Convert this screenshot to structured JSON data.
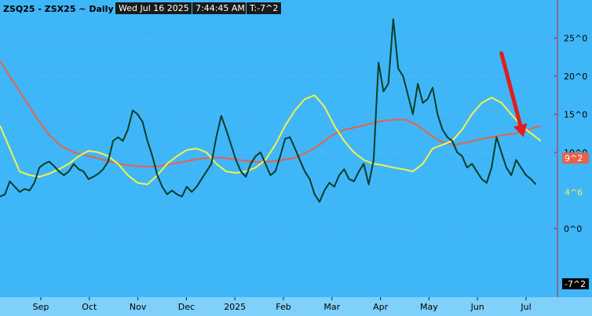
{
  "header": {
    "symbol": "ZSQ25 - ZSX25 ~ Daily",
    "date_time": "Wed Jul 16 2025",
    "time": "7:44:45 AM",
    "last_value": "T:-7^2"
  },
  "colors": {
    "background": "#3FB6F8",
    "spread_line": "#0B3D26",
    "ma_slow": "#E8614A",
    "ma_fast": "#F2F24A",
    "arrow": "#E11D1D",
    "right_axis_line": "#C62828",
    "bottom_band": "#7FD0FA"
  },
  "chart_data": {
    "type": "line",
    "x_axis_labels": [
      "Sep",
      "Oct",
      "Nov",
      "Dec",
      "2025",
      "Feb",
      "Mar",
      "Apr",
      "May",
      "Jun",
      "Jul"
    ],
    "y_axis_labels": [
      "25^0",
      "20^0",
      "15^0",
      "10^0",
      "0^0"
    ],
    "y_ticks": [
      25,
      20,
      15,
      10,
      0
    ],
    "ylim": [
      -9,
      30
    ],
    "x_range": [
      0,
      222
    ],
    "value_badges": [
      {
        "label": "9^2",
        "value": 9.25,
        "bg": "#E8614A",
        "fg": "#FFFFFF"
      },
      {
        "label": "4^6",
        "value": 4.75,
        "bg": "#3FB6F8",
        "fg": "#F2F24A"
      },
      {
        "label": "-7^2",
        "value": -7.25,
        "bg": "#000000",
        "fg": "#FFFFFF"
      }
    ],
    "series": [
      {
        "role": "spread",
        "values": [
          [
            0,
            4.2
          ],
          [
            2,
            4.5
          ],
          [
            4,
            6.2
          ],
          [
            6,
            5.5
          ],
          [
            8,
            4.8
          ],
          [
            10,
            5.2
          ],
          [
            12,
            5.0
          ],
          [
            14,
            6.0
          ],
          [
            16,
            8.0
          ],
          [
            18,
            8.5
          ],
          [
            20,
            8.8
          ],
          [
            22,
            8.2
          ],
          [
            24,
            7.5
          ],
          [
            26,
            7.0
          ],
          [
            28,
            7.5
          ],
          [
            30,
            8.5
          ],
          [
            32,
            7.8
          ],
          [
            34,
            7.5
          ],
          [
            36,
            6.5
          ],
          [
            38,
            6.8
          ],
          [
            40,
            7.2
          ],
          [
            42,
            7.8
          ],
          [
            44,
            8.8
          ],
          [
            46,
            11.5
          ],
          [
            48,
            12.0
          ],
          [
            50,
            11.5
          ],
          [
            52,
            13.0
          ],
          [
            54,
            15.5
          ],
          [
            56,
            15.0
          ],
          [
            58,
            14.0
          ],
          [
            60,
            11.5
          ],
          [
            62,
            9.5
          ],
          [
            64,
            7.0
          ],
          [
            66,
            5.5
          ],
          [
            68,
            4.5
          ],
          [
            70,
            5.0
          ],
          [
            72,
            4.5
          ],
          [
            74,
            4.2
          ],
          [
            76,
            5.5
          ],
          [
            78,
            4.8
          ],
          [
            80,
            5.5
          ],
          [
            82,
            6.5
          ],
          [
            84,
            7.5
          ],
          [
            86,
            8.5
          ],
          [
            88,
            12.0
          ],
          [
            90,
            14.8
          ],
          [
            92,
            13.0
          ],
          [
            94,
            11.0
          ],
          [
            96,
            9.0
          ],
          [
            98,
            7.5
          ],
          [
            100,
            6.8
          ],
          [
            102,
            8.5
          ],
          [
            104,
            9.5
          ],
          [
            106,
            10.0
          ],
          [
            108,
            8.5
          ],
          [
            110,
            7.0
          ],
          [
            112,
            7.5
          ],
          [
            114,
            9.5
          ],
          [
            116,
            11.8
          ],
          [
            118,
            12.0
          ],
          [
            120,
            10.5
          ],
          [
            122,
            9.0
          ],
          [
            124,
            7.5
          ],
          [
            126,
            6.5
          ],
          [
            128,
            4.5
          ],
          [
            130,
            3.5
          ],
          [
            132,
            5.0
          ],
          [
            134,
            6.0
          ],
          [
            136,
            5.5
          ],
          [
            138,
            7.0
          ],
          [
            140,
            7.8
          ],
          [
            142,
            6.5
          ],
          [
            144,
            6.2
          ],
          [
            146,
            7.5
          ],
          [
            148,
            8.5
          ],
          [
            150,
            5.8
          ],
          [
            152,
            9.0
          ],
          [
            154,
            21.8
          ],
          [
            156,
            18.0
          ],
          [
            158,
            19.0
          ],
          [
            160,
            27.5
          ],
          [
            162,
            21.0
          ],
          [
            164,
            20.0
          ],
          [
            166,
            17.5
          ],
          [
            168,
            15.0
          ],
          [
            170,
            19.0
          ],
          [
            172,
            16.5
          ],
          [
            174,
            17.0
          ],
          [
            176,
            18.5
          ],
          [
            178,
            15.0
          ],
          [
            180,
            13.0
          ],
          [
            182,
            12.0
          ],
          [
            184,
            11.5
          ],
          [
            186,
            10.0
          ],
          [
            188,
            9.5
          ],
          [
            190,
            8.0
          ],
          [
            192,
            8.5
          ],
          [
            194,
            7.5
          ],
          [
            196,
            6.5
          ],
          [
            198,
            6.0
          ],
          [
            200,
            8.0
          ],
          [
            202,
            12.0
          ],
          [
            204,
            10.0
          ],
          [
            206,
            8.0
          ],
          [
            208,
            7.0
          ],
          [
            210,
            9.0
          ],
          [
            212,
            8.0
          ],
          [
            214,
            7.0
          ],
          [
            216,
            6.5
          ],
          [
            218,
            5.8
          ]
        ]
      },
      {
        "role": "slow-ma",
        "values": [
          [
            0,
            22.0
          ],
          [
            5,
            19.5
          ],
          [
            10,
            17.0
          ],
          [
            15,
            14.5
          ],
          [
            20,
            12.3
          ],
          [
            25,
            10.8
          ],
          [
            30,
            10.0
          ],
          [
            35,
            9.6
          ],
          [
            40,
            9.2
          ],
          [
            45,
            8.8
          ],
          [
            50,
            8.4
          ],
          [
            55,
            8.2
          ],
          [
            60,
            8.1
          ],
          [
            65,
            8.2
          ],
          [
            70,
            8.5
          ],
          [
            75,
            8.8
          ],
          [
            80,
            9.1
          ],
          [
            85,
            9.3
          ],
          [
            90,
            9.3
          ],
          [
            95,
            9.1
          ],
          [
            100,
            8.9
          ],
          [
            105,
            8.7
          ],
          [
            110,
            8.8
          ],
          [
            115,
            9.0
          ],
          [
            120,
            9.3
          ],
          [
            125,
            10.0
          ],
          [
            130,
            11.0
          ],
          [
            135,
            12.2
          ],
          [
            140,
            13.0
          ],
          [
            145,
            13.3
          ],
          [
            150,
            13.7
          ],
          [
            155,
            14.1
          ],
          [
            160,
            14.3
          ],
          [
            165,
            14.3
          ],
          [
            170,
            13.5
          ],
          [
            175,
            12.3
          ],
          [
            180,
            11.3
          ],
          [
            185,
            11.0
          ],
          [
            190,
            11.3
          ],
          [
            195,
            11.7
          ],
          [
            200,
            12.0
          ],
          [
            205,
            12.3
          ],
          [
            210,
            12.5
          ],
          [
            215,
            13.0
          ],
          [
            220,
            13.5
          ]
        ]
      },
      {
        "role": "fast-ma",
        "values": [
          [
            0,
            13.5
          ],
          [
            4,
            10.5
          ],
          [
            8,
            7.5
          ],
          [
            12,
            7.0
          ],
          [
            16,
            6.8
          ],
          [
            20,
            7.2
          ],
          [
            24,
            7.8
          ],
          [
            28,
            8.5
          ],
          [
            32,
            9.5
          ],
          [
            36,
            10.2
          ],
          [
            40,
            10.0
          ],
          [
            44,
            9.5
          ],
          [
            48,
            8.5
          ],
          [
            52,
            7.0
          ],
          [
            56,
            6.0
          ],
          [
            60,
            5.8
          ],
          [
            64,
            7.0
          ],
          [
            68,
            8.5
          ],
          [
            72,
            9.5
          ],
          [
            76,
            10.3
          ],
          [
            80,
            10.5
          ],
          [
            84,
            10.0
          ],
          [
            88,
            8.5
          ],
          [
            92,
            7.5
          ],
          [
            96,
            7.3
          ],
          [
            100,
            7.5
          ],
          [
            104,
            8.0
          ],
          [
            108,
            9.0
          ],
          [
            112,
            11.0
          ],
          [
            116,
            13.5
          ],
          [
            120,
            15.5
          ],
          [
            124,
            17.0
          ],
          [
            128,
            17.5
          ],
          [
            132,
            16.0
          ],
          [
            136,
            13.5
          ],
          [
            140,
            11.5
          ],
          [
            144,
            10.0
          ],
          [
            148,
            9.0
          ],
          [
            152,
            8.5
          ],
          [
            156,
            8.3
          ],
          [
            160,
            8.0
          ],
          [
            164,
            7.8
          ],
          [
            168,
            7.5
          ],
          [
            172,
            8.5
          ],
          [
            176,
            10.5
          ],
          [
            180,
            11.0
          ],
          [
            184,
            11.5
          ],
          [
            188,
            13.0
          ],
          [
            192,
            15.0
          ],
          [
            196,
            16.5
          ],
          [
            200,
            17.2
          ],
          [
            204,
            16.5
          ],
          [
            208,
            15.0
          ],
          [
            212,
            13.5
          ],
          [
            216,
            12.5
          ],
          [
            220,
            11.5
          ]
        ]
      }
    ],
    "arrow": {
      "from": [
        204,
        23.0
      ],
      "to": [
        213,
        12.0
      ]
    }
  }
}
